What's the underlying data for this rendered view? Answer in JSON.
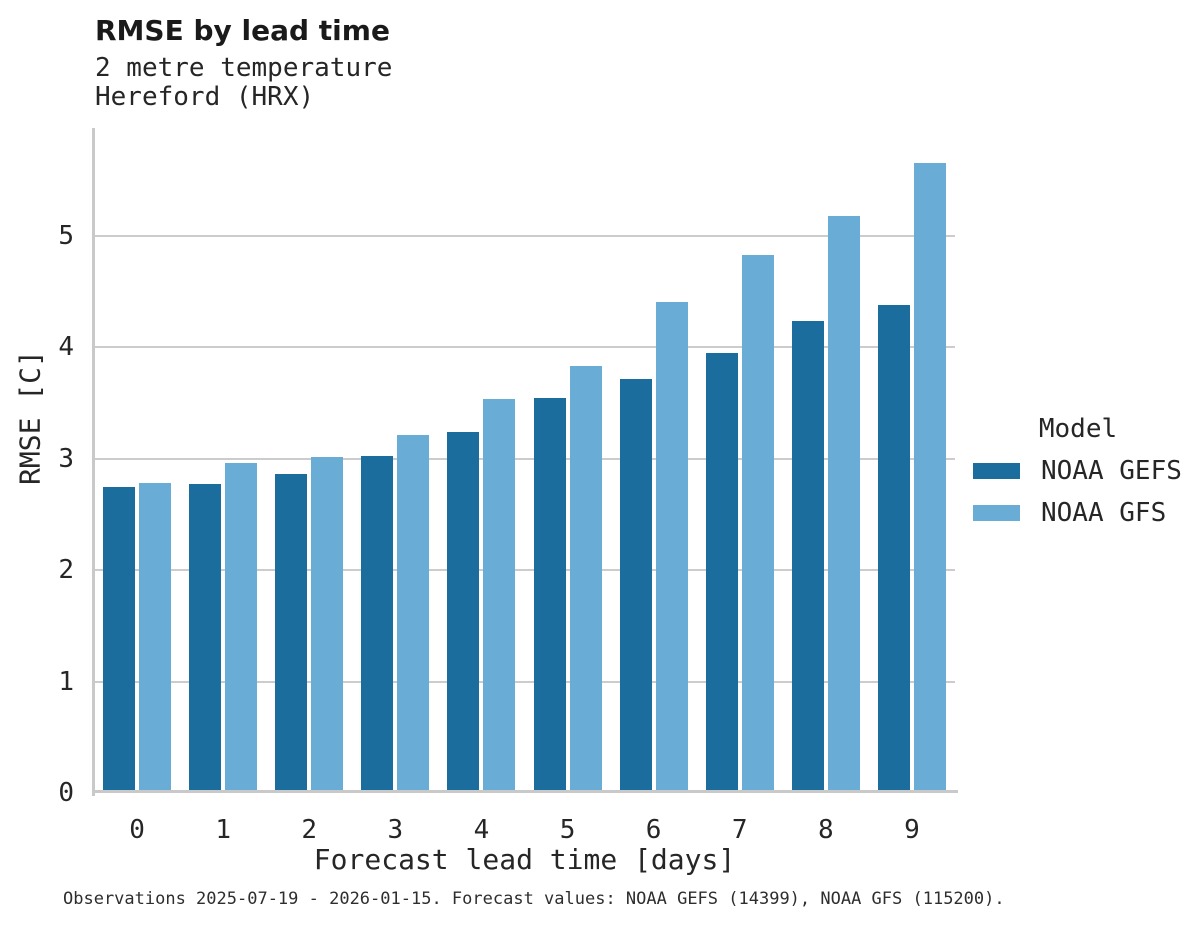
{
  "header": {
    "title": "RMSE by lead time",
    "subtitle_line1": "2 metre temperature",
    "subtitle_line2": "Hereford (HRX)"
  },
  "chart_data": {
    "type": "bar",
    "title": "RMSE by lead time",
    "subtitle": [
      "2 metre temperature",
      "Hereford (HRX)"
    ],
    "categories": [
      "0",
      "1",
      "2",
      "3",
      "4",
      "5",
      "6",
      "7",
      "8",
      "9"
    ],
    "series": [
      {
        "name": "NOAA GEFS",
        "color": "#1B6D9E",
        "values": [
          2.75,
          2.77,
          2.86,
          3.03,
          3.24,
          3.55,
          3.72,
          3.95,
          4.24,
          4.38
        ]
      },
      {
        "name": "NOAA GFS",
        "color": "#69ADD6",
        "values": [
          2.78,
          2.96,
          3.02,
          3.21,
          3.54,
          3.83,
          4.41,
          4.83,
          5.18,
          5.66
        ]
      }
    ],
    "xlabel": "Forecast lead time [days]",
    "ylabel": "RMSE [C]",
    "ylim": [
      0,
      5.97
    ],
    "y_ticks": [
      0,
      1,
      2,
      3,
      4,
      5
    ],
    "grid": "horizontal-only",
    "legend_title": "Model",
    "legend_position": "right-center"
  },
  "colors": {
    "bar_dark": "#1B6D9E",
    "bar_light": "#69ADD6",
    "gridline": "#CCCCCC",
    "spine": "#C9C9C9",
    "text": "#262626",
    "background": "#FFFFFF"
  },
  "footer": {
    "note": "Observations 2025-07-19 - 2026-01-15. Forecast values: NOAA GEFS (14399), NOAA GFS (115200)."
  }
}
